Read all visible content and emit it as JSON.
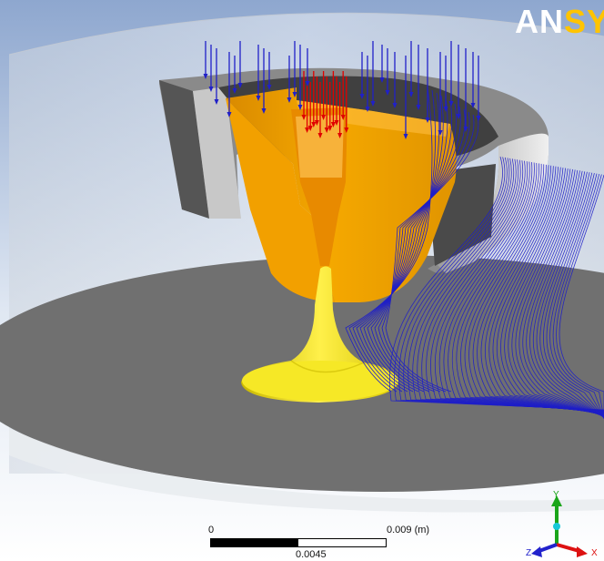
{
  "logo": {
    "text_white": "AN",
    "text_gold": "SYS"
  },
  "scale": {
    "left_label": "0",
    "right_label": "0.009",
    "unit": "(m)",
    "mid_label": "0.0045"
  },
  "triad": {
    "y_label": "Y",
    "z_label": "Z",
    "x_label": "X"
  },
  "colors": {
    "background_top": "#8ea7cf",
    "background_bottom": "#ffffff",
    "floor": "#6f6f6f",
    "orange": "#f0a000",
    "yellow": "#f4e800",
    "streamline": "#1e1ec8",
    "vector_red": "#e00000"
  }
}
